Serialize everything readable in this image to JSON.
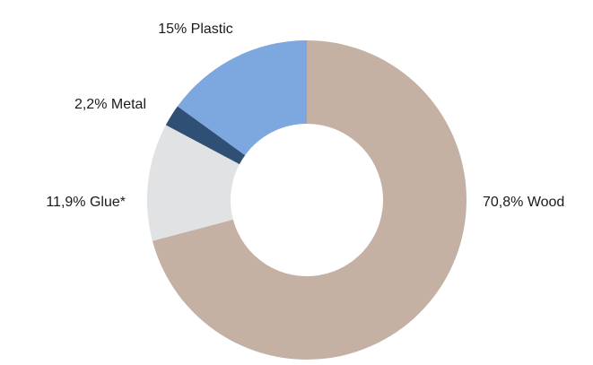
{
  "chart_data": {
    "type": "pie",
    "donut": true,
    "title": "",
    "start_angle_deg": 0,
    "direction": "clockwise",
    "slices": [
      {
        "name": "Wood",
        "value": 70.8,
        "label": "70,8% Wood",
        "color": "#C4B1A4"
      },
      {
        "name": "Glue*",
        "value": 11.9,
        "label": "11,9% Glue*",
        "color": "#E1E2E3"
      },
      {
        "name": "Metal",
        "value": 2.2,
        "label": "2,2% Metal",
        "color": "#2F4F74"
      },
      {
        "name": "Plastic",
        "value": 15,
        "label": "15% Plastic",
        "color": "#7DA7DF"
      }
    ]
  }
}
